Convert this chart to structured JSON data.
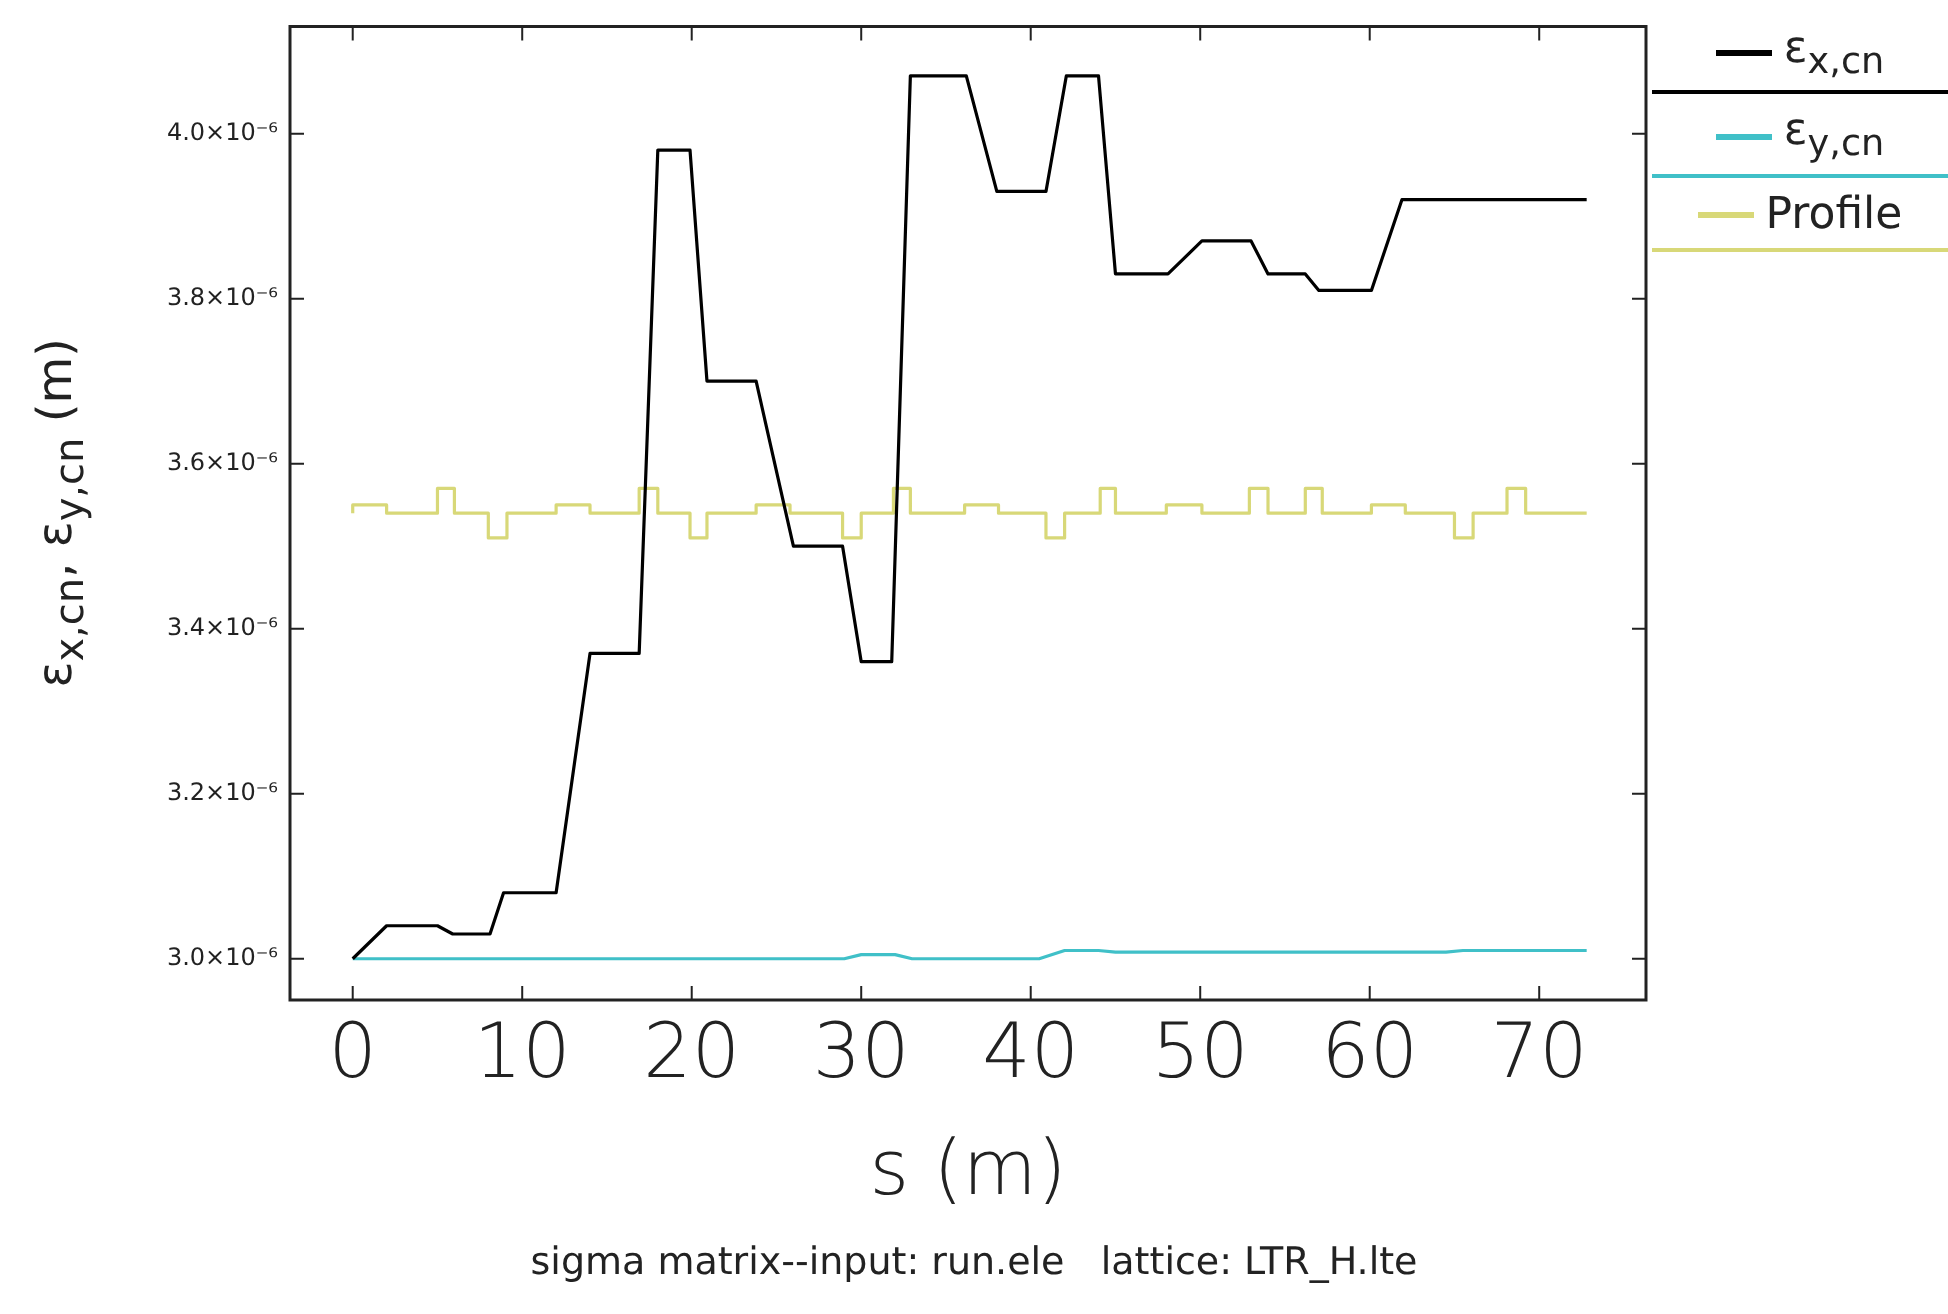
{
  "chart_data": {
    "type": "line",
    "xlabel": "s (m)",
    "ylabel": "ε$_{x,cn}$, ε$_{y,cn}$ (m)",
    "annotations": [
      "sigma matrix--input: run.ele   lattice: LTR_H.lte"
    ],
    "xlim": [
      -3.7,
      76.3
    ],
    "xticks": [
      0,
      10,
      20,
      30,
      40,
      50,
      60,
      70
    ],
    "ylim": [
      2.95e-06,
      4.13e-06
    ],
    "yticks": [
      {
        "value": 3e-06,
        "label": "3.0×10⁻⁶"
      },
      {
        "value": 3.2e-06,
        "label": "3.2×10⁻⁶"
      },
      {
        "value": 3.4e-06,
        "label": "3.4×10⁻⁶"
      },
      {
        "value": 3.6e-06,
        "label": "3.6×10⁻⁶"
      },
      {
        "value": 3.8e-06,
        "label": "3.8×10⁻⁶"
      },
      {
        "value": 4e-06,
        "label": "4.0×10⁻⁶"
      }
    ],
    "grid": false,
    "legend": "right",
    "marker": "none",
    "line_style": "solid",
    "series": [
      {
        "name": "ε$_{x,cn}$",
        "color": "#000000",
        "x": [
          0,
          2.0,
          5.0,
          5.9,
          8.1,
          8.9,
          12.0,
          14.0,
          16.9,
          18.0,
          19.9,
          20.9,
          23.8,
          26.0,
          28.9,
          30.0,
          31.8,
          32.9,
          36.2,
          38.0,
          40.9,
          42.1,
          44.0,
          45.0,
          48.1,
          50.1,
          53.0,
          54.0,
          56.2,
          57.0,
          60.1,
          61.9,
          72.8
        ],
        "values": [
          3e-06,
          3.04e-06,
          3.04e-06,
          3.03e-06,
          3.03e-06,
          3.08e-06,
          3.08e-06,
          3.37e-06,
          3.37e-06,
          3.98e-06,
          3.98e-06,
          3.7e-06,
          3.7e-06,
          3.5e-06,
          3.5e-06,
          3.36e-06,
          3.36e-06,
          4.07e-06,
          4.07e-06,
          3.93e-06,
          3.93e-06,
          4.07e-06,
          4.07e-06,
          3.83e-06,
          3.83e-06,
          3.87e-06,
          3.87e-06,
          3.83e-06,
          3.83e-06,
          3.81e-06,
          3.81e-06,
          3.92e-06,
          3.92e-06
        ]
      },
      {
        "name": "ε$_{y,cn}$",
        "color": "#40c0c8",
        "x": [
          0,
          29,
          30,
          32,
          33,
          40.5,
          42,
          44,
          45,
          64.5,
          65.5,
          72.8
        ],
        "values": [
          3e-06,
          3e-06,
          3.005e-06,
          3.005e-06,
          3e-06,
          3e-06,
          3.01e-06,
          3.01e-06,
          3.008e-06,
          3.008e-06,
          3.01e-06,
          3.01e-06
        ]
      },
      {
        "name": "Profile",
        "color": "#d8d878",
        "x": [
          0,
          0,
          2.0,
          2.0,
          5.0,
          5.0,
          6.0,
          6.0,
          8.0,
          8.0,
          9.1,
          9.1,
          12.0,
          12.0,
          14.0,
          14.0,
          16.9,
          16.9,
          18.0,
          18.0,
          19.9,
          19.9,
          20.9,
          20.9,
          23.8,
          23.8,
          25.8,
          25.8,
          28.9,
          28.9,
          30.0,
          30.0,
          31.9,
          31.9,
          32.9,
          32.9,
          36.1,
          36.1,
          38.1,
          38.1,
          40.9,
          40.9,
          42.0,
          42.0,
          44.1,
          44.1,
          45.0,
          45.0,
          48.0,
          48.0,
          50.1,
          50.1,
          52.9,
          52.9,
          54.0,
          54.0,
          56.2,
          56.2,
          57.2,
          57.2,
          60.1,
          60.1,
          62.1,
          62.1,
          65.0,
          65.0,
          66.1,
          66.1,
          68.1,
          68.1,
          69.2,
          69.2,
          72.8
        ],
        "values": [
          3.54e-06,
          3.55e-06,
          3.55e-06,
          3.54e-06,
          3.54e-06,
          3.57e-06,
          3.57e-06,
          3.54e-06,
          3.54e-06,
          3.51e-06,
          3.51e-06,
          3.54e-06,
          3.54e-06,
          3.55e-06,
          3.55e-06,
          3.54e-06,
          3.54e-06,
          3.57e-06,
          3.57e-06,
          3.54e-06,
          3.54e-06,
          3.51e-06,
          3.51e-06,
          3.54e-06,
          3.54e-06,
          3.55e-06,
          3.55e-06,
          3.54e-06,
          3.54e-06,
          3.51e-06,
          3.51e-06,
          3.54e-06,
          3.54e-06,
          3.57e-06,
          3.57e-06,
          3.54e-06,
          3.54e-06,
          3.55e-06,
          3.55e-06,
          3.54e-06,
          3.54e-06,
          3.51e-06,
          3.51e-06,
          3.54e-06,
          3.54e-06,
          3.57e-06,
          3.57e-06,
          3.54e-06,
          3.54e-06,
          3.55e-06,
          3.55e-06,
          3.54e-06,
          3.54e-06,
          3.57e-06,
          3.57e-06,
          3.54e-06,
          3.54e-06,
          3.57e-06,
          3.57e-06,
          3.54e-06,
          3.54e-06,
          3.55e-06,
          3.55e-06,
          3.54e-06,
          3.54e-06,
          3.51e-06,
          3.51e-06,
          3.54e-06,
          3.54e-06,
          3.57e-06,
          3.57e-06,
          3.54e-06,
          3.54e-06
        ]
      }
    ]
  }
}
